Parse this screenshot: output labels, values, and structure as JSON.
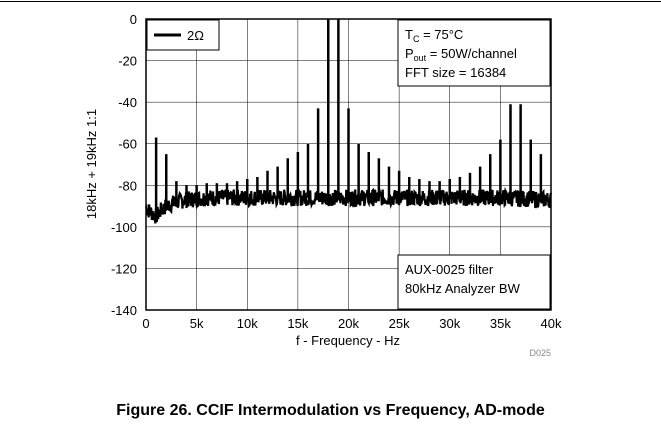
{
  "caption": "Figure 26. CCIF Intermodulation vs Frequency, AD-mode",
  "figure_code": "D025",
  "chart_data": {
    "type": "line",
    "xlabel": "f - Frequency - Hz",
    "ylabel": "18kHz + 19kHz 1:1",
    "xlim": [
      0,
      40000
    ],
    "ylim": [
      -140,
      0
    ],
    "xticks": [
      0,
      5000,
      10000,
      15000,
      20000,
      25000,
      30000,
      35000,
      40000
    ],
    "xtick_labels": [
      "0",
      "5k",
      "10k",
      "15k",
      "20k",
      "25k",
      "30k",
      "35k",
      "40k"
    ],
    "yticks": [
      0,
      -20,
      -40,
      -60,
      -80,
      -100,
      -120,
      -140
    ],
    "ytick_labels": [
      "0",
      "-20",
      "-40",
      "-60",
      "-80",
      "-100",
      "-120",
      "-140"
    ],
    "grid": true,
    "legend": {
      "placement": "top-left",
      "entries": [
        "2Ω"
      ]
    },
    "conditions": {
      "tc": {
        "sym": "T",
        "sub": "C",
        "rest": " = 75°C"
      },
      "pout": {
        "sym": "P",
        "sub": "out",
        "rest": " = 50W/channel"
      },
      "fft": "FFT size = 16384"
    },
    "filter_note": [
      "AUX-0025 filter",
      "80kHz Analyzer BW"
    ],
    "series": [
      {
        "name": "2Ω",
        "noise_floor": [
          {
            "x": 0,
            "y": -91
          },
          {
            "x": 500,
            "y": -93
          },
          {
            "x": 1000,
            "y": -95
          },
          {
            "x": 1500,
            "y": -92
          },
          {
            "x": 2000,
            "y": -90
          },
          {
            "x": 3000,
            "y": -88
          },
          {
            "x": 4000,
            "y": -87
          },
          {
            "x": 6000,
            "y": -86
          },
          {
            "x": 10000,
            "y": -86
          },
          {
            "x": 20000,
            "y": -86
          },
          {
            "x": 30000,
            "y": -86
          },
          {
            "x": 35000,
            "y": -86
          },
          {
            "x": 40000,
            "y": -87
          }
        ],
        "peaks": [
          {
            "x": 1000,
            "y": -57
          },
          {
            "x": 2000,
            "y": -65
          },
          {
            "x": 3000,
            "y": -78
          },
          {
            "x": 4000,
            "y": -80
          },
          {
            "x": 5000,
            "y": -80
          },
          {
            "x": 6000,
            "y": -79
          },
          {
            "x": 7000,
            "y": -79
          },
          {
            "x": 8000,
            "y": -79
          },
          {
            "x": 9000,
            "y": -78
          },
          {
            "x": 10000,
            "y": -77
          },
          {
            "x": 11000,
            "y": -76
          },
          {
            "x": 12000,
            "y": -73
          },
          {
            "x": 13000,
            "y": -71
          },
          {
            "x": 14000,
            "y": -67
          },
          {
            "x": 15000,
            "y": -64
          },
          {
            "x": 16000,
            "y": -60
          },
          {
            "x": 17000,
            "y": -43
          },
          {
            "x": 18000,
            "y": 0
          },
          {
            "x": 19000,
            "y": 0
          },
          {
            "x": 20000,
            "y": -43
          },
          {
            "x": 21000,
            "y": -60
          },
          {
            "x": 22000,
            "y": -64
          },
          {
            "x": 23000,
            "y": -67
          },
          {
            "x": 24000,
            "y": -71
          },
          {
            "x": 25000,
            "y": -73
          },
          {
            "x": 26000,
            "y": -76
          },
          {
            "x": 27000,
            "y": -77
          },
          {
            "x": 28000,
            "y": -78
          },
          {
            "x": 29000,
            "y": -78
          },
          {
            "x": 30000,
            "y": -77
          },
          {
            "x": 31000,
            "y": -76
          },
          {
            "x": 32000,
            "y": -74
          },
          {
            "x": 33000,
            "y": -71
          },
          {
            "x": 34000,
            "y": -65
          },
          {
            "x": 35000,
            "y": -58
          },
          {
            "x": 36000,
            "y": -41
          },
          {
            "x": 37000,
            "y": -41
          },
          {
            "x": 38000,
            "y": -58
          },
          {
            "x": 39000,
            "y": -65
          }
        ]
      }
    ]
  }
}
